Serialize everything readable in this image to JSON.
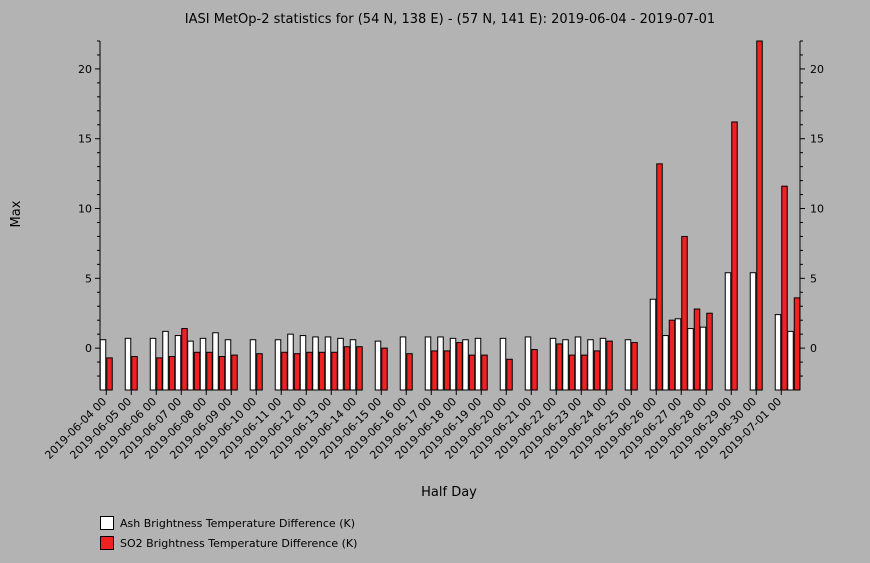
{
  "chart_data": {
    "type": "bar",
    "title": "IASI MetOp-2 statistics for (54 N, 138 E) - (57 N, 141 E): 2019-06-04 - 2019-07-01",
    "xlabel": "Half Day",
    "ylabel": "Max",
    "ylim": [
      -3,
      22
    ],
    "yticks": [
      0,
      5,
      10,
      15,
      20
    ],
    "tick_labels": [
      "2019-06-04 00",
      "2019-06-05 00",
      "2019-06-06 00",
      "2019-06-07 00",
      "2019-06-08 00",
      "2019-06-09 00",
      "2019-06-10 00",
      "2019-06-11 00",
      "2019-06-12 00",
      "2019-06-13 00",
      "2019-06-14 00",
      "2019-06-15 00",
      "2019-06-16 00",
      "2019-06-17 00",
      "2019-06-18 00",
      "2019-06-19 00",
      "2019-06-20 00",
      "2019-06-21 00",
      "2019-06-22 00",
      "2019-06-23 00",
      "2019-06-24 00",
      "2019-06-25 00",
      "2019-06-26 00",
      "2019-06-27 00",
      "2019-06-28 00",
      "2019-06-29 00",
      "2019-06-30 00",
      "2019-07-01 00"
    ],
    "categories": [
      "2019-06-04 00",
      "2019-06-04 12",
      "2019-06-05 00",
      "2019-06-05 12",
      "2019-06-06 00",
      "2019-06-06 12",
      "2019-06-07 00",
      "2019-06-07 12",
      "2019-06-08 00",
      "2019-06-08 12",
      "2019-06-09 00",
      "2019-06-09 12",
      "2019-06-10 00",
      "2019-06-10 12",
      "2019-06-11 00",
      "2019-06-11 12",
      "2019-06-12 00",
      "2019-06-12 12",
      "2019-06-13 00",
      "2019-06-13 12",
      "2019-06-14 00",
      "2019-06-14 12",
      "2019-06-15 00",
      "2019-06-15 12",
      "2019-06-16 00",
      "2019-06-16 12",
      "2019-06-17 00",
      "2019-06-17 12",
      "2019-06-18 00",
      "2019-06-18 12",
      "2019-06-19 00",
      "2019-06-19 12",
      "2019-06-20 00",
      "2019-06-20 12",
      "2019-06-21 00",
      "2019-06-21 12",
      "2019-06-22 00",
      "2019-06-22 12",
      "2019-06-23 00",
      "2019-06-23 12",
      "2019-06-24 00",
      "2019-06-24 12",
      "2019-06-25 00",
      "2019-06-25 12",
      "2019-06-26 00",
      "2019-06-26 12",
      "2019-06-27 00",
      "2019-06-27 12",
      "2019-06-28 00",
      "2019-06-28 12",
      "2019-06-29 00",
      "2019-06-29 12",
      "2019-06-30 00",
      "2019-06-30 12",
      "2019-07-01 00",
      "2019-07-01 12"
    ],
    "series": [
      {
        "name": "Ash Brightness Temperature Difference (K)",
        "color": "#ffffff",
        "values": [
          0.6,
          null,
          0.7,
          null,
          0.7,
          1.2,
          0.9,
          0.5,
          0.7,
          1.1,
          0.6,
          null,
          0.6,
          null,
          0.6,
          1.0,
          0.9,
          0.8,
          0.8,
          0.7,
          0.6,
          null,
          0.5,
          null,
          0.8,
          null,
          0.8,
          0.8,
          0.7,
          0.6,
          0.7,
          null,
          0.7,
          null,
          0.8,
          null,
          0.7,
          0.6,
          0.8,
          0.6,
          0.7,
          null,
          0.6,
          null,
          3.5,
          0.9,
          2.1,
          1.4,
          1.5,
          null,
          5.4,
          null,
          5.4,
          null,
          2.4,
          1.2
        ]
      },
      {
        "name": "SO2 Brightness Temperature Difference (K)",
        "color": "#ee2222",
        "values": [
          -0.7,
          null,
          -0.6,
          null,
          -0.7,
          -0.6,
          1.4,
          -0.3,
          -0.3,
          -0.6,
          -0.5,
          null,
          -0.4,
          null,
          -0.3,
          -0.4,
          -0.3,
          -0.3,
          -0.3,
          0.1,
          0.1,
          null,
          0.0,
          null,
          -0.4,
          null,
          -0.2,
          -0.2,
          0.4,
          -0.5,
          -0.5,
          null,
          -0.8,
          null,
          -0.1,
          null,
          0.3,
          -0.5,
          -0.5,
          -0.2,
          0.5,
          null,
          0.4,
          null,
          13.2,
          2.0,
          8.0,
          2.8,
          2.5,
          null,
          16.2,
          null,
          22.0,
          null,
          11.6,
          3.6
        ]
      }
    ],
    "grid": false,
    "legend_position": "bottom-left"
  }
}
